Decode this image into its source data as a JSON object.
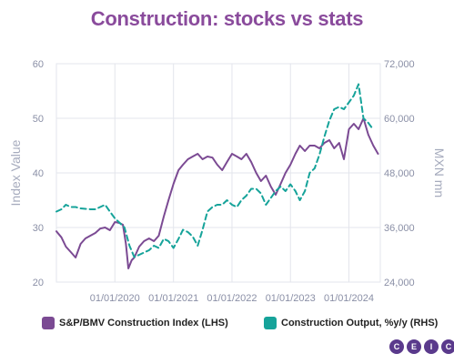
{
  "title": "Construction: stocks vs stats",
  "logo": {
    "letters": [
      "C",
      "E",
      "I",
      "C"
    ]
  },
  "colors": {
    "lhs_series": "#7b4a93",
    "rhs_series": "#16a39a",
    "grid": "#e3e5ec",
    "title": "#8a4b9c",
    "logo": "#5a3a8c"
  },
  "chart_data": {
    "type": "line",
    "title": "Construction: stocks vs stats",
    "x_tick_labels": [
      "01/01/2020",
      "01/01/2021",
      "01/01/2022",
      "01/01/2023",
      "01/01/2024"
    ],
    "x_tick_dates": [
      "2020-01-01",
      "2021-01-01",
      "2022-01-01",
      "2023-01-01",
      "2024-01-01"
    ],
    "xlim": [
      "2019-01-01",
      "2024-07-15"
    ],
    "y_left": {
      "label": "Index Value",
      "ylim": [
        20,
        60
      ],
      "ticks": [
        "20",
        "30",
        "40",
        "50",
        "60"
      ],
      "tick_values": [
        20,
        30,
        40,
        50,
        60
      ]
    },
    "y_right": {
      "label": "MXN mn",
      "ylim": [
        24000,
        72000
      ],
      "ticks": [
        "24,000",
        "36,000",
        "48,000",
        "60,000",
        "72,000"
      ],
      "tick_values": [
        24000,
        36000,
        48000,
        60000,
        72000
      ]
    },
    "grid": true,
    "legend_position": "bottom",
    "series": [
      {
        "name": "S&P/BMV Construction Index (LHS)",
        "axis": "left",
        "style": "solid",
        "x": [
          "2019-01-01",
          "2019-02-01",
          "2019-03-01",
          "2019-04-01",
          "2019-05-01",
          "2019-06-01",
          "2019-07-01",
          "2019-08-01",
          "2019-09-01",
          "2019-10-01",
          "2019-11-01",
          "2019-12-01",
          "2020-01-01",
          "2020-02-01",
          "2020-02-20",
          "2020-03-10",
          "2020-03-25",
          "2020-04-15",
          "2020-05-01",
          "2020-06-01",
          "2020-07-01",
          "2020-08-01",
          "2020-09-01",
          "2020-10-01",
          "2020-11-01",
          "2020-12-01",
          "2021-01-01",
          "2021-02-01",
          "2021-03-01",
          "2021-04-01",
          "2021-05-01",
          "2021-06-01",
          "2021-07-01",
          "2021-08-01",
          "2021-09-01",
          "2021-10-01",
          "2021-11-01",
          "2021-12-01",
          "2022-01-01",
          "2022-02-01",
          "2022-03-01",
          "2022-04-01",
          "2022-05-01",
          "2022-06-01",
          "2022-07-01",
          "2022-08-01",
          "2022-09-01",
          "2022-10-01",
          "2022-11-01",
          "2022-12-01",
          "2023-01-01",
          "2023-02-01",
          "2023-03-01",
          "2023-04-01",
          "2023-05-01",
          "2023-06-01",
          "2023-07-01",
          "2023-08-01",
          "2023-09-01",
          "2023-10-01",
          "2023-11-01",
          "2023-12-01",
          "2024-01-01",
          "2024-02-01",
          "2024-03-01",
          "2024-04-01",
          "2024-05-01",
          "2024-06-01",
          "2024-07-01"
        ],
        "values": [
          29.3,
          28.2,
          26.5,
          25.5,
          24.5,
          27.0,
          28.0,
          28.5,
          29.0,
          29.8,
          30.0,
          29.5,
          31.0,
          30.8,
          30.5,
          27.0,
          22.5,
          24.0,
          24.5,
          26.5,
          27.5,
          28.0,
          27.5,
          28.5,
          32.0,
          35.0,
          38.0,
          40.5,
          41.5,
          42.5,
          43.0,
          43.5,
          42.5,
          43.0,
          42.8,
          41.5,
          40.5,
          42.0,
          43.5,
          43.0,
          42.5,
          43.5,
          42.0,
          40.0,
          38.5,
          39.5,
          37.5,
          36.0,
          38.0,
          40.0,
          41.5,
          43.5,
          45.0,
          44.0,
          45.0,
          45.0,
          44.5,
          45.5,
          46.0,
          44.5,
          45.5,
          42.5,
          48.0,
          49.0,
          48.0,
          50.0,
          47.0,
          45.0,
          43.5
        ]
      },
      {
        "name": "Construction Output, %y/y (RHS)",
        "axis": "right",
        "style": "dashed",
        "x": [
          "2019-01-01",
          "2019-02-01",
          "2019-03-01",
          "2019-04-01",
          "2019-05-01",
          "2019-06-01",
          "2019-07-01",
          "2019-08-01",
          "2019-09-01",
          "2019-10-01",
          "2019-11-01",
          "2019-12-01",
          "2020-01-01",
          "2020-02-01",
          "2020-03-01",
          "2020-04-01",
          "2020-05-01",
          "2020-06-01",
          "2020-07-01",
          "2020-08-01",
          "2020-09-01",
          "2020-10-01",
          "2020-11-01",
          "2020-12-01",
          "2021-01-01",
          "2021-02-01",
          "2021-03-01",
          "2021-04-01",
          "2021-05-01",
          "2021-06-01",
          "2021-07-01",
          "2021-08-01",
          "2021-09-01",
          "2021-10-01",
          "2021-11-01",
          "2021-12-01",
          "2022-01-01",
          "2022-02-01",
          "2022-03-01",
          "2022-04-01",
          "2022-05-01",
          "2022-06-01",
          "2022-07-01",
          "2022-08-01",
          "2022-09-01",
          "2022-10-01",
          "2022-11-01",
          "2022-12-01",
          "2023-01-01",
          "2023-02-01",
          "2023-03-01",
          "2023-04-01",
          "2023-05-01",
          "2023-06-01",
          "2023-07-01",
          "2023-08-01",
          "2023-09-01",
          "2023-10-01",
          "2023-11-01",
          "2023-12-01",
          "2024-01-01",
          "2024-02-01",
          "2024-03-01",
          "2024-04-01",
          "2024-05-01",
          "2024-06-01"
        ],
        "values": [
          39500,
          40000,
          41000,
          40500,
          40500,
          40200,
          40100,
          40000,
          40000,
          40500,
          41000,
          39500,
          38000,
          37000,
          36000,
          32000,
          29500,
          30000,
          30500,
          31000,
          32000,
          31500,
          33500,
          33000,
          31500,
          33500,
          35500,
          35000,
          34000,
          32000,
          35500,
          39500,
          40500,
          41000,
          41000,
          42000,
          41000,
          40500,
          42000,
          43000,
          44500,
          44500,
          43500,
          41000,
          42500,
          44000,
          45000,
          44000,
          45500,
          44000,
          42000,
          44000,
          48000,
          49000,
          52000,
          56000,
          59500,
          62000,
          62500,
          62000,
          63500,
          65000,
          67500,
          60000,
          59000,
          57500
        ]
      }
    ]
  }
}
